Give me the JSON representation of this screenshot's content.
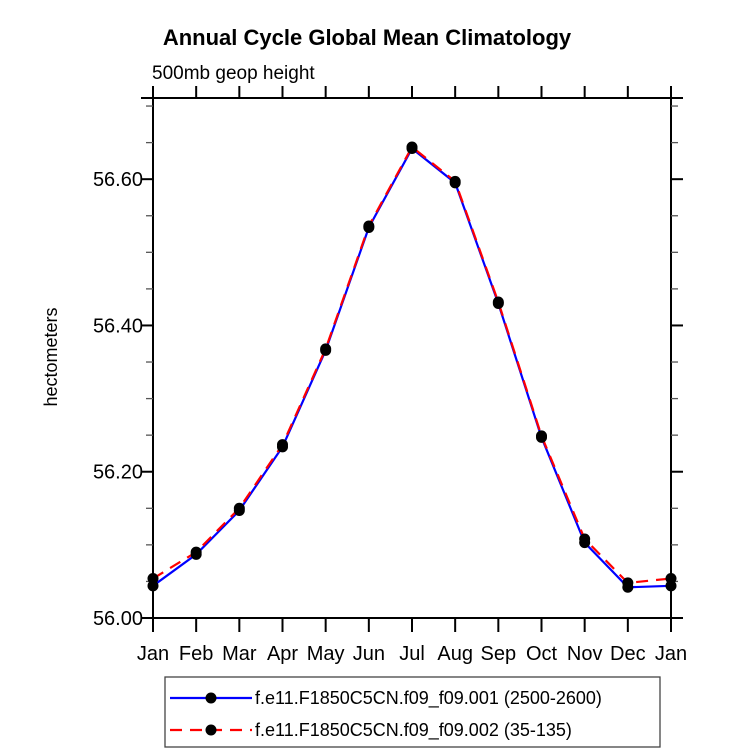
{
  "page": {
    "title": "Annual Cycle Global Mean Climatology",
    "subtitle": "500mb geop height",
    "y_axis_label": "hectometers"
  },
  "chart_data": {
    "type": "line",
    "title": "Annual Cycle Global Mean Climatology",
    "subtitle": "500mb geop height",
    "xlabel": "",
    "ylabel": "hectometers",
    "categories": [
      "Jan",
      "Feb",
      "Mar",
      "Apr",
      "May",
      "Jun",
      "Jul",
      "Aug",
      "Sep",
      "Oct",
      "Nov",
      "Dec",
      "Jan"
    ],
    "series": [
      {
        "name": "f.e11.F1850C5CN.f09_f09.001 (2500-2600)",
        "color": "#0000ff",
        "line_style": "solid",
        "marker": "filled-circle",
        "marker_color": "#000000",
        "values": [
          56.044,
          56.087,
          56.147,
          56.234,
          56.366,
          56.534,
          56.642,
          56.595,
          56.43,
          56.247,
          56.103,
          56.042,
          56.044
        ]
      },
      {
        "name": "f.e11.F1850C5CN.f09_f09.002 (35-135)",
        "color": "#ff0000",
        "line_style": "dashed",
        "marker": "filled-circle",
        "marker_color": "#000000",
        "values": [
          56.054,
          56.09,
          56.15,
          56.237,
          56.368,
          56.536,
          56.644,
          56.597,
          56.432,
          56.249,
          56.108,
          56.048,
          56.054
        ]
      }
    ],
    "ylim": [
      56.0,
      56.711
    ],
    "yticks": [
      56.0,
      56.2,
      56.4,
      56.6
    ],
    "ytick_labels": [
      "56.00",
      "56.20",
      "56.40",
      "56.60"
    ],
    "minor_tick_step": 0.05,
    "grid": false,
    "tick_style": "outward",
    "legend_position": "bottom-left",
    "axis_color": "#000000",
    "minor_tick_color": "#555555"
  }
}
